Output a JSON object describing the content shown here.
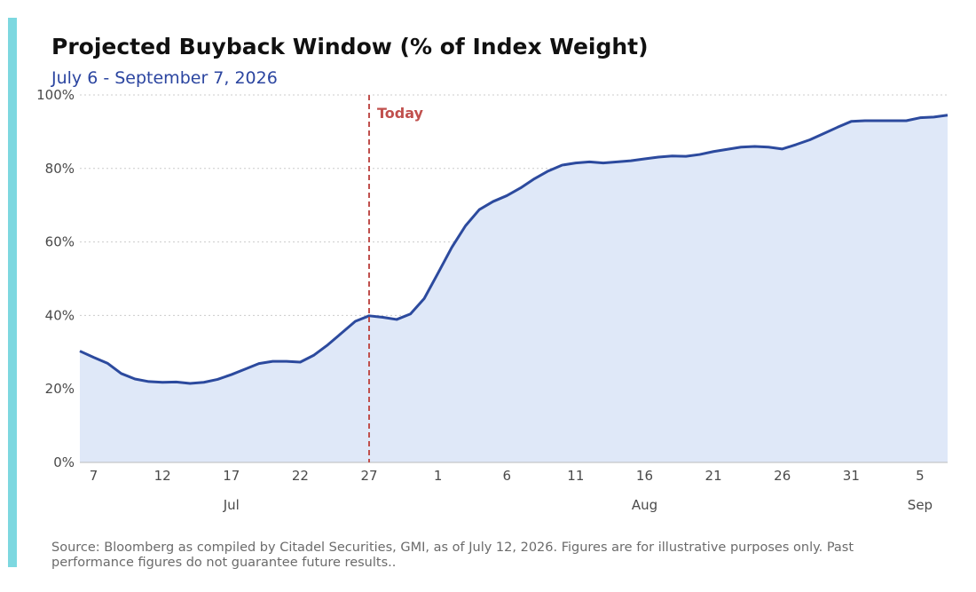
{
  "title": "Projected Buyback Window (% of Index Weight)",
  "subtitle": "July 6 - September 7, 2026",
  "source": "Source: Bloomberg as compiled by Citadel Securities, GMI, as of July 12, 2026. Figures are for illustrative purposes only. Past performance figures do not guarantee future results..",
  "colors": {
    "accent": "#7dd8e0",
    "title": "#111111",
    "subtitle": "#2b45a0",
    "line": "#2c4a9e",
    "fill": "#dfe8f8",
    "today": "#c0504d",
    "grid": "#cccccc"
  },
  "chart_data": {
    "type": "area",
    "x_start": "2026-07-06",
    "x_end": "2026-09-07",
    "ylim": [
      0,
      100
    ],
    "yticks": [
      0,
      20,
      40,
      60,
      80,
      100
    ],
    "ytick_labels": [
      "0%",
      "20%",
      "40%",
      "60%",
      "80%",
      "100%"
    ],
    "y_grid": "dotted",
    "xticks": [
      {
        "date": "2026-07-07",
        "label": "7"
      },
      {
        "date": "2026-07-12",
        "label": "12"
      },
      {
        "date": "2026-07-17",
        "label": "17"
      },
      {
        "date": "2026-07-22",
        "label": "22"
      },
      {
        "date": "2026-07-27",
        "label": "27"
      },
      {
        "date": "2026-08-01",
        "label": "1"
      },
      {
        "date": "2026-08-06",
        "label": "6"
      },
      {
        "date": "2026-08-11",
        "label": "11"
      },
      {
        "date": "2026-08-16",
        "label": "16"
      },
      {
        "date": "2026-08-21",
        "label": "21"
      },
      {
        "date": "2026-08-26",
        "label": "26"
      },
      {
        "date": "2026-08-31",
        "label": "31"
      },
      {
        "date": "2026-09-05",
        "label": "5"
      }
    ],
    "months": [
      {
        "date": "2026-07-17",
        "label": "Jul"
      },
      {
        "date": "2026-08-16",
        "label": "Aug"
      },
      {
        "date": "2026-09-05",
        "label": "Sep"
      }
    ],
    "today_marker": {
      "date": "2026-07-27",
      "label": "Today"
    },
    "series": [
      {
        "x": [
          "2026-07-06",
          "2026-07-07",
          "2026-07-08",
          "2026-07-09",
          "2026-07-10",
          "2026-07-11",
          "2026-07-12",
          "2026-07-13",
          "2026-07-14",
          "2026-07-15",
          "2026-07-16",
          "2026-07-17",
          "2026-07-18",
          "2026-07-19",
          "2026-07-20",
          "2026-07-21",
          "2026-07-22",
          "2026-07-23",
          "2026-07-24",
          "2026-07-25",
          "2026-07-26",
          "2026-07-27",
          "2026-07-28",
          "2026-07-29",
          "2026-07-30",
          "2026-07-31",
          "2026-08-01",
          "2026-08-02",
          "2026-08-03",
          "2026-08-04",
          "2026-08-05",
          "2026-08-06",
          "2026-08-07",
          "2026-08-08",
          "2026-08-09",
          "2026-08-10",
          "2026-08-11",
          "2026-08-12",
          "2026-08-13",
          "2026-08-14",
          "2026-08-15",
          "2026-08-16",
          "2026-08-17",
          "2026-08-18",
          "2026-08-19",
          "2026-08-20",
          "2026-08-21",
          "2026-08-22",
          "2026-08-23",
          "2026-08-24",
          "2026-08-25",
          "2026-08-26",
          "2026-08-27",
          "2026-08-28",
          "2026-08-29",
          "2026-08-30",
          "2026-08-31",
          "2026-09-01",
          "2026-09-02",
          "2026-09-03",
          "2026-09-04",
          "2026-09-05",
          "2026-09-06",
          "2026-09-07"
        ],
        "y": [
          30.3,
          28.6,
          27.0,
          24.2,
          22.7,
          22.0,
          21.8,
          21.9,
          21.5,
          21.8,
          22.6,
          23.9,
          25.4,
          26.9,
          27.5,
          27.5,
          27.3,
          29.2,
          32.0,
          35.2,
          38.4,
          39.9,
          39.5,
          38.9,
          40.4,
          44.6,
          51.5,
          58.5,
          64.4,
          68.8,
          71.0,
          72.6,
          74.7,
          77.2,
          79.3,
          80.9,
          81.5,
          81.8,
          81.5,
          81.8,
          82.1,
          82.6,
          83.1,
          83.4,
          83.3,
          83.8,
          84.6,
          85.2,
          85.8,
          86.0,
          85.8,
          85.3,
          86.5,
          87.8,
          89.5,
          91.2,
          92.8,
          93.0,
          93.0,
          93.0,
          93.0,
          93.8,
          94.0,
          94.5
        ]
      }
    ]
  }
}
